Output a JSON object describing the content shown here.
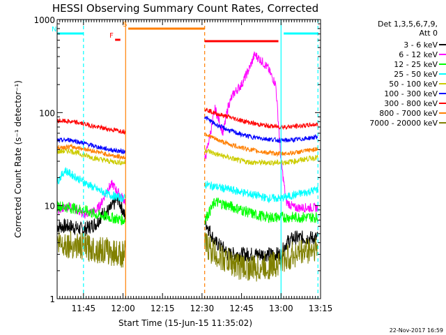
{
  "chart_data": {
    "type": "line",
    "title": "HESSI Observing Summary Count Rates, Corrected",
    "xlabel": "Start Time (15-Jun-15 11:35:02)",
    "ylabel": "Corrected Count Rate (s⁻¹ detector⁻¹)",
    "yscale": "log",
    "ylim": [
      1,
      1000
    ],
    "yticks": [
      {
        "v": 1,
        "label": "1"
      },
      {
        "v": 10,
        "label": "10"
      },
      {
        "v": 100,
        "label": "100"
      },
      {
        "v": 1000,
        "label": "1000"
      }
    ],
    "xlim_min": [
      35,
      135
    ],
    "xticks": [
      {
        "m": 45,
        "label": "11:45"
      },
      {
        "m": 60,
        "label": "12:00"
      },
      {
        "m": 75,
        "label": "12:15"
      },
      {
        "m": 90,
        "label": "12:30"
      },
      {
        "m": 105,
        "label": "12:45"
      },
      {
        "m": 120,
        "label": "13:00"
      },
      {
        "m": 135,
        "label": "13:15"
      }
    ],
    "legend_header": [
      "Det 1,3,5,6,7,9,",
      "Att 0"
    ],
    "series": [
      {
        "name": "3 - 6 keV",
        "color": "#000000",
        "seg1": [
          [
            35,
            6
          ],
          [
            40,
            6
          ],
          [
            45,
            5.5
          ],
          [
            50,
            6.5
          ],
          [
            52,
            8
          ],
          [
            55,
            9
          ],
          [
            58,
            12
          ],
          [
            60,
            9
          ],
          [
            61,
            7
          ]
        ],
        "seg2": [
          [
            91,
            7
          ],
          [
            95,
            4
          ],
          [
            98,
            3.5
          ],
          [
            100,
            3
          ],
          [
            105,
            3
          ],
          [
            110,
            3
          ],
          [
            115,
            3
          ],
          [
            120,
            3
          ],
          [
            122,
            4
          ],
          [
            125,
            4.5
          ],
          [
            130,
            4.5
          ],
          [
            134,
            4.5
          ]
        ]
      },
      {
        "name": "6 - 12 keV",
        "color": "#ff00ff",
        "seg1": [
          [
            35,
            9
          ],
          [
            40,
            10
          ],
          [
            45,
            8
          ],
          [
            50,
            9
          ],
          [
            52,
            11
          ],
          [
            54,
            15
          ],
          [
            56,
            17
          ],
          [
            58,
            14
          ],
          [
            60,
            12
          ],
          [
            61,
            11
          ]
        ],
        "seg2": [
          [
            91,
            30
          ],
          [
            95,
            110
          ],
          [
            98,
            60
          ],
          [
            100,
            120
          ],
          [
            102,
            160
          ],
          [
            105,
            200
          ],
          [
            108,
            300
          ],
          [
            110,
            420
          ],
          [
            113,
            350
          ],
          [
            115,
            300
          ],
          [
            118,
            200
          ],
          [
            120,
            30
          ],
          [
            122,
            11
          ],
          [
            125,
            9.5
          ],
          [
            130,
            9.5
          ],
          [
            134,
            9.5
          ]
        ]
      },
      {
        "name": "12 - 25 keV",
        "color": "#00ff00",
        "seg1": [
          [
            35,
            10
          ],
          [
            40,
            9.5
          ],
          [
            45,
            9
          ],
          [
            50,
            8
          ],
          [
            55,
            7.5
          ],
          [
            60,
            7
          ],
          [
            61,
            7
          ]
        ],
        "seg2": [
          [
            91,
            7
          ],
          [
            95,
            11
          ],
          [
            100,
            10
          ],
          [
            105,
            9
          ],
          [
            110,
            8
          ],
          [
            115,
            7.5
          ],
          [
            120,
            7.5
          ],
          [
            125,
            7.5
          ],
          [
            130,
            7.5
          ],
          [
            134,
            7.5
          ]
        ]
      },
      {
        "name": "25 - 50 keV",
        "color": "#00ffff",
        "seg1": [
          [
            35,
            18
          ],
          [
            38,
            24
          ],
          [
            40,
            22
          ],
          [
            45,
            18
          ],
          [
            50,
            15
          ],
          [
            55,
            13
          ],
          [
            60,
            12
          ],
          [
            61,
            12
          ]
        ],
        "seg2": [
          [
            91,
            17
          ],
          [
            95,
            16
          ],
          [
            100,
            15
          ],
          [
            105,
            14
          ],
          [
            110,
            13
          ],
          [
            115,
            12
          ],
          [
            120,
            12
          ],
          [
            125,
            13
          ],
          [
            130,
            14
          ],
          [
            134,
            15
          ]
        ]
      },
      {
        "name": "50 - 100 keV",
        "color": "#cccc00",
        "seg1": [
          [
            35,
            38
          ],
          [
            40,
            39
          ],
          [
            45,
            35
          ],
          [
            50,
            32
          ],
          [
            55,
            30
          ],
          [
            60,
            29
          ],
          [
            61,
            29
          ]
        ],
        "seg2": [
          [
            91,
            40
          ],
          [
            95,
            36
          ],
          [
            100,
            33
          ],
          [
            105,
            30
          ],
          [
            110,
            29
          ],
          [
            115,
            29
          ],
          [
            120,
            29
          ],
          [
            125,
            30
          ],
          [
            130,
            32
          ],
          [
            134,
            33
          ]
        ]
      },
      {
        "name": "100 - 300 keV",
        "color": "#0000ff",
        "seg1": [
          [
            35,
            50
          ],
          [
            40,
            51
          ],
          [
            45,
            47
          ],
          [
            50,
            43
          ],
          [
            55,
            40
          ],
          [
            60,
            38
          ],
          [
            61,
            38
          ]
        ],
        "seg2": [
          [
            91,
            90
          ],
          [
            95,
            75
          ],
          [
            100,
            65
          ],
          [
            105,
            58
          ],
          [
            110,
            54
          ],
          [
            115,
            52
          ],
          [
            120,
            50
          ],
          [
            125,
            51
          ],
          [
            130,
            53
          ],
          [
            134,
            55
          ]
        ]
      },
      {
        "name": "300 - 800 keV",
        "color": "#ff0000",
        "seg1": [
          [
            35,
            82
          ],
          [
            40,
            80
          ],
          [
            45,
            76
          ],
          [
            50,
            70
          ],
          [
            55,
            66
          ],
          [
            60,
            63
          ],
          [
            61,
            62
          ]
        ],
        "seg2": [
          [
            91,
            110
          ],
          [
            95,
            98
          ],
          [
            100,
            90
          ],
          [
            105,
            82
          ],
          [
            110,
            76
          ],
          [
            115,
            72
          ],
          [
            120,
            70
          ],
          [
            125,
            71
          ],
          [
            130,
            73
          ],
          [
            134,
            75
          ]
        ]
      },
      {
        "name": "800 - 7000 keV",
        "color": "#ff7f00",
        "seg1": [
          [
            35,
            42
          ],
          [
            40,
            43
          ],
          [
            45,
            41
          ],
          [
            50,
            38
          ],
          [
            55,
            35
          ],
          [
            60,
            33
          ],
          [
            61,
            33
          ]
        ],
        "seg2": [
          [
            91,
            60
          ],
          [
            95,
            52
          ],
          [
            100,
            46
          ],
          [
            105,
            42
          ],
          [
            110,
            39
          ],
          [
            115,
            37
          ],
          [
            120,
            36
          ],
          [
            125,
            37
          ],
          [
            130,
            39
          ],
          [
            134,
            41
          ]
        ]
      },
      {
        "name": "7000 - 20000 keV",
        "color": "#808000",
        "seg1": [
          [
            35,
            4
          ],
          [
            40,
            3.8
          ],
          [
            45,
            3.6
          ],
          [
            50,
            3.4
          ],
          [
            55,
            3.2
          ],
          [
            60,
            3
          ],
          [
            61,
            3
          ]
        ],
        "seg2": [
          [
            91,
            4
          ],
          [
            95,
            3
          ],
          [
            100,
            2.5
          ],
          [
            105,
            2.2
          ],
          [
            110,
            2.1
          ],
          [
            115,
            2.2
          ],
          [
            120,
            2.5
          ],
          [
            125,
            3
          ],
          [
            130,
            3.3
          ],
          [
            134,
            3.5
          ]
        ]
      }
    ],
    "flags": [
      {
        "label": "N",
        "color": "#00ffff",
        "x0": 35,
        "x1": 45
      },
      {
        "label": "F",
        "color": "#ff0000",
        "x0": 57,
        "x1": 59
      },
      {
        "label": "S",
        "color": "#ff7f00",
        "x0": 62,
        "x1": 91
      },
      {
        "label": "",
        "color": "#ff0000",
        "x0": 91,
        "x1": 119
      },
      {
        "label": "",
        "color": "#00ffff",
        "x0": 121,
        "x1": 134
      }
    ],
    "vlines": [
      {
        "m": 45,
        "color": "#00ffff",
        "dash": true
      },
      {
        "m": 61,
        "color": "#ff7f00",
        "dash": false
      },
      {
        "m": 91,
        "color": "#ff7f00",
        "dash": true
      },
      {
        "m": 120,
        "color": "#00ffff",
        "dash": false
      },
      {
        "m": 134,
        "color": "#00ffff",
        "dash": true
      }
    ],
    "footer_date": "22-Nov-2017 16:59"
  }
}
